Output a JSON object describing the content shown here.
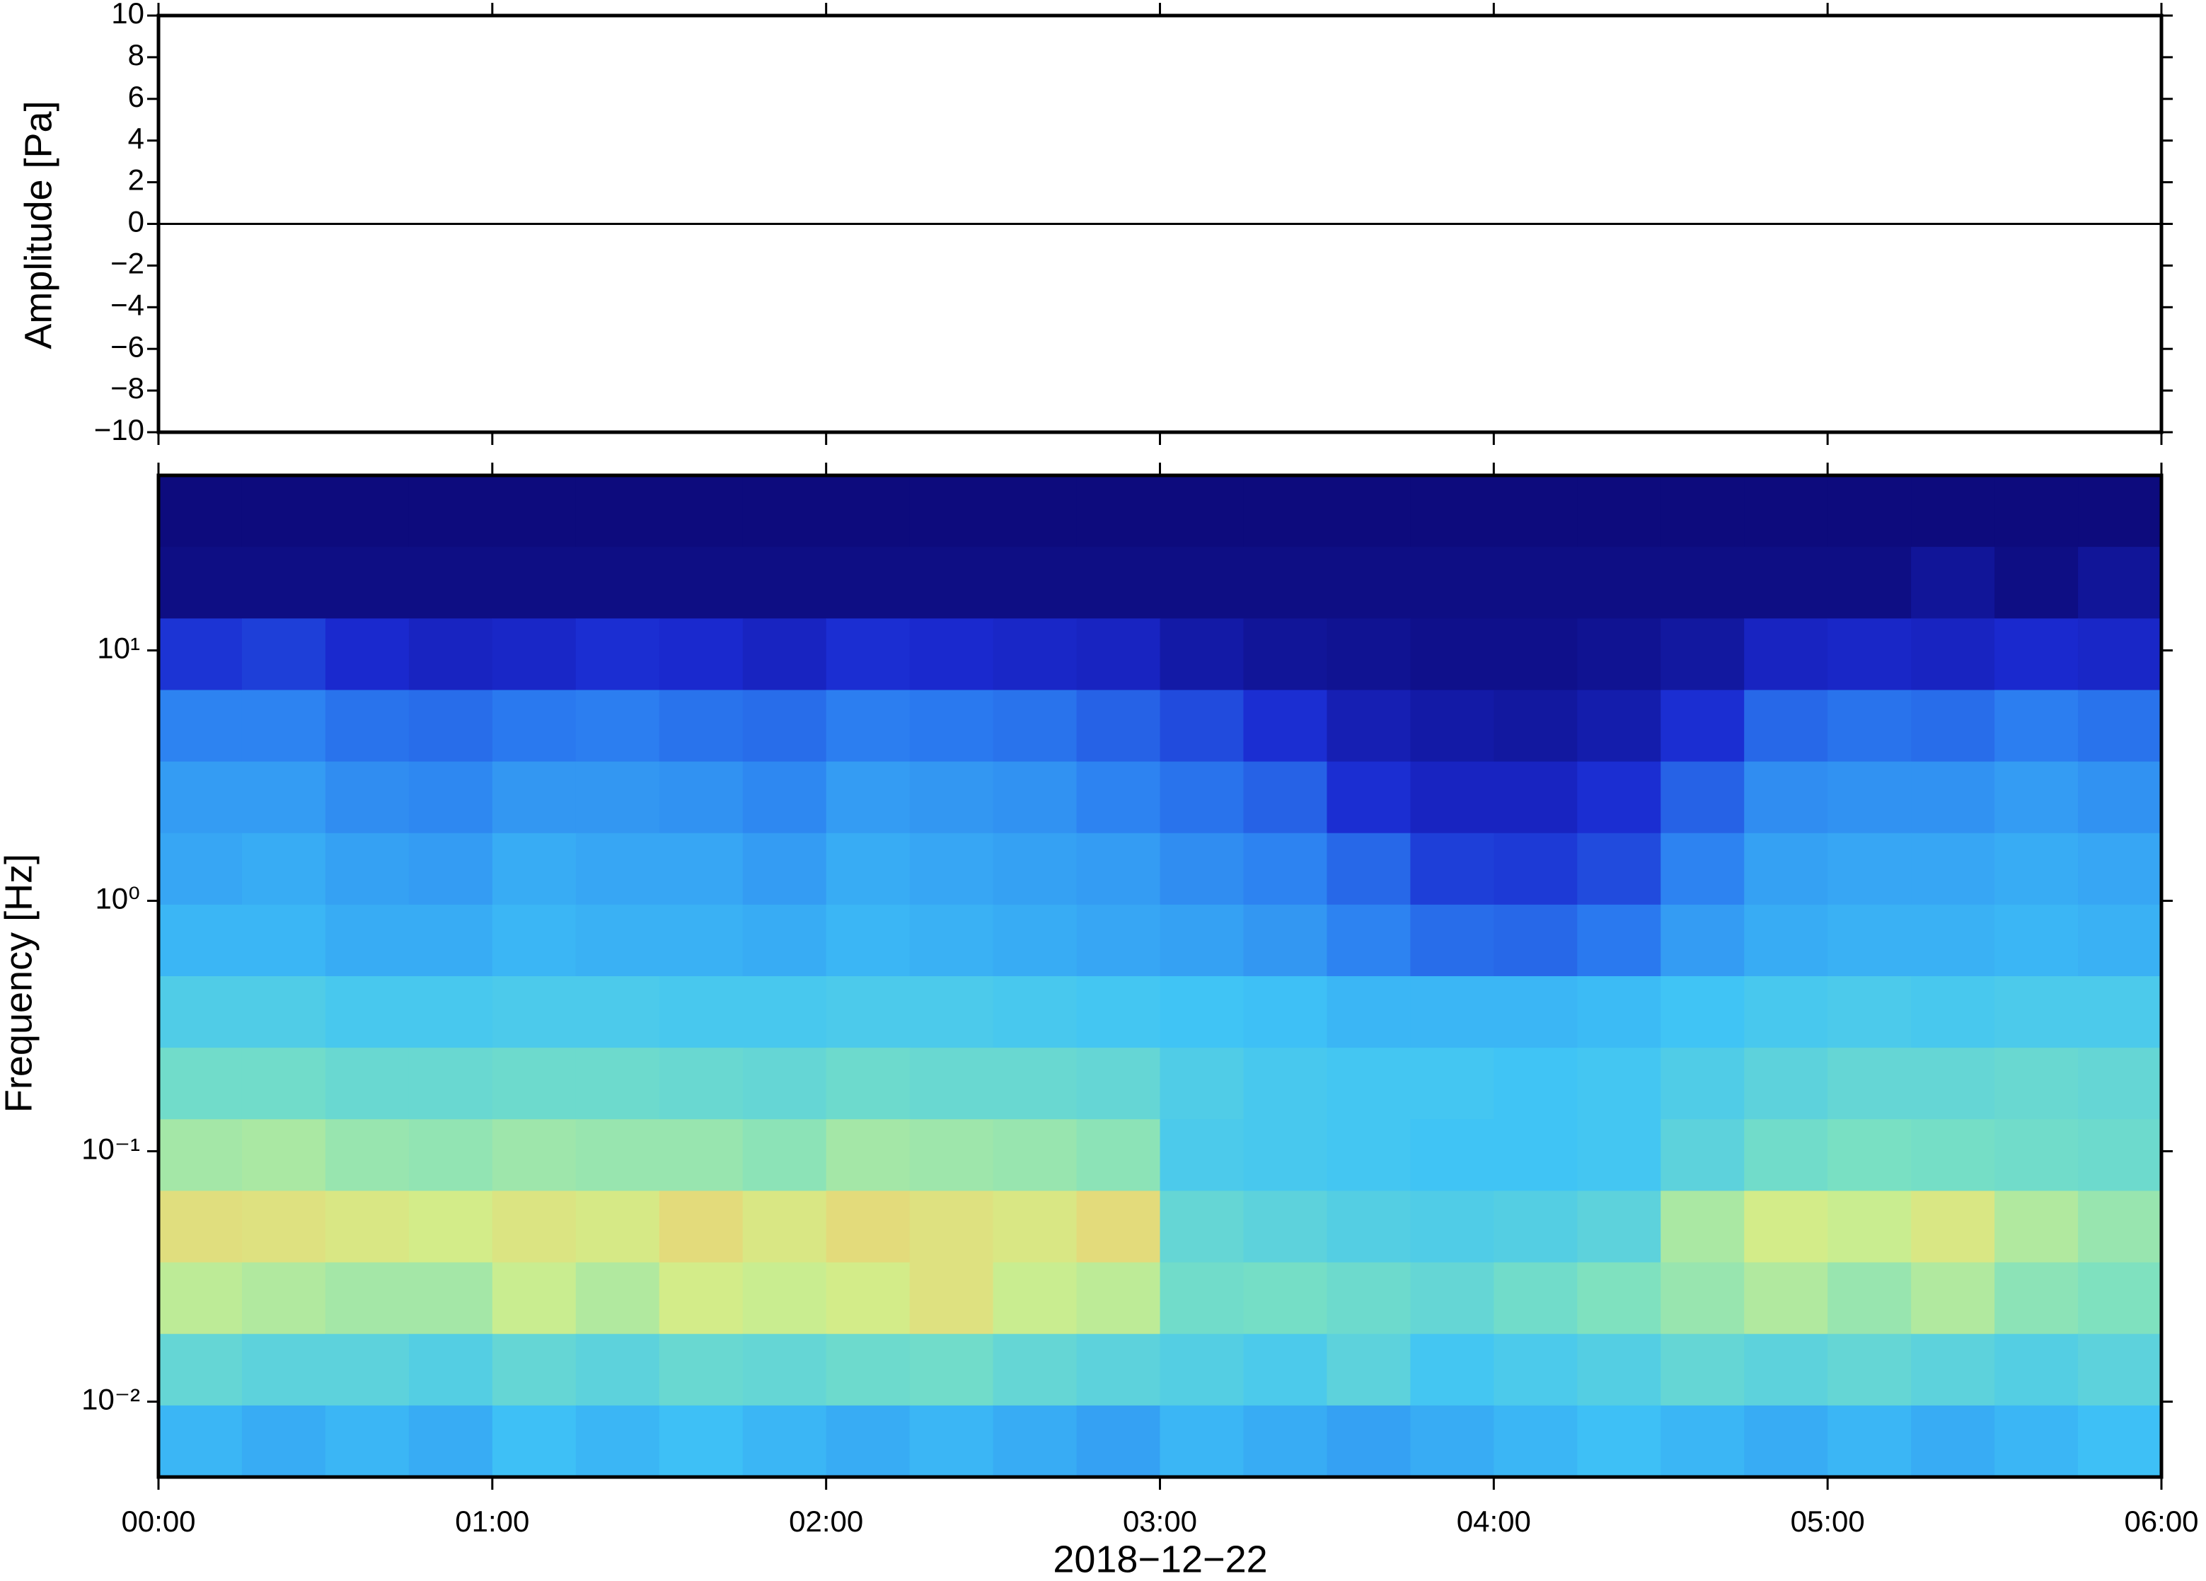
{
  "chart_data": [
    {
      "type": "line",
      "ylabel": "Amplitude [Pa]",
      "x": [
        0,
        6
      ],
      "values": [
        0,
        0
      ],
      "color": "#000000",
      "ylim": [
        -10,
        10
      ],
      "yticks": [
        {
          "value": -10,
          "label": "−10"
        },
        {
          "value": -8,
          "label": "−8"
        },
        {
          "value": -6,
          "label": "−6"
        },
        {
          "value": -4,
          "label": "−4"
        },
        {
          "value": -2,
          "label": "−2"
        },
        0,
        2,
        4,
        6,
        8,
        10
      ]
    },
    {
      "type": "heatmap",
      "ylabel": "Frequency [Hz]",
      "xlabel": "2018−12−22",
      "xlim": [
        0,
        6
      ],
      "xticks": [
        {
          "value": 0,
          "label": "00:00"
        },
        {
          "value": 1,
          "label": "01:00"
        },
        {
          "value": 2,
          "label": "02:00"
        },
        {
          "value": 3,
          "label": "03:00"
        },
        {
          "value": 4,
          "label": "04:00"
        },
        {
          "value": 5,
          "label": "05:00"
        },
        {
          "value": 6,
          "label": "06:00"
        }
      ],
      "ylim": [
        0.005,
        50
      ],
      "log_y": true,
      "yticks": [
        {
          "value": 0.01,
          "label": "10⁻²"
        },
        {
          "value": 0.1,
          "label": "10⁻¹"
        },
        {
          "value": 1,
          "label": "10⁰"
        },
        {
          "value": 10,
          "label": "10¹"
        }
      ],
      "colormap": [
        "#0b0670",
        "#1a2ad0",
        "#2b7cf0",
        "#3fc4f6",
        "#7ae0c2",
        "#d2ee8a",
        "#f7c56a",
        "#f5894a"
      ],
      "values": [
        [
          0.02,
          0.02,
          0.02,
          0.02,
          0.02,
          0.02,
          0.02,
          0.02,
          0.02,
          0.02,
          0.02,
          0.02,
          0.02,
          0.02,
          0.02,
          0.02,
          0.02,
          0.02,
          0.02,
          0.02,
          0.02,
          0.02,
          0.02,
          0.02
        ],
        [
          0.03,
          0.03,
          0.03,
          0.03,
          0.03,
          0.03,
          0.03,
          0.03,
          0.03,
          0.03,
          0.03,
          0.03,
          0.03,
          0.03,
          0.03,
          0.03,
          0.03,
          0.03,
          0.03,
          0.03,
          0.03,
          0.06,
          0.03,
          0.06
        ],
        [
          0.16,
          0.18,
          0.14,
          0.12,
          0.13,
          0.15,
          0.14,
          0.12,
          0.15,
          0.14,
          0.13,
          0.12,
          0.08,
          0.06,
          0.05,
          0.04,
          0.04,
          0.05,
          0.07,
          0.12,
          0.13,
          0.12,
          0.14,
          0.13
        ],
        [
          0.3,
          0.3,
          0.27,
          0.26,
          0.28,
          0.29,
          0.27,
          0.26,
          0.29,
          0.28,
          0.27,
          0.24,
          0.2,
          0.15,
          0.1,
          0.08,
          0.07,
          0.09,
          0.15,
          0.25,
          0.27,
          0.26,
          0.29,
          0.27
        ],
        [
          0.35,
          0.35,
          0.32,
          0.31,
          0.34,
          0.34,
          0.33,
          0.31,
          0.35,
          0.34,
          0.33,
          0.3,
          0.27,
          0.24,
          0.15,
          0.12,
          0.12,
          0.15,
          0.24,
          0.32,
          0.33,
          0.33,
          0.35,
          0.33
        ],
        [
          0.37,
          0.38,
          0.36,
          0.35,
          0.38,
          0.37,
          0.37,
          0.35,
          0.38,
          0.37,
          0.36,
          0.35,
          0.32,
          0.3,
          0.25,
          0.18,
          0.17,
          0.2,
          0.3,
          0.36,
          0.37,
          0.37,
          0.38,
          0.37
        ],
        [
          0.4,
          0.4,
          0.38,
          0.38,
          0.4,
          0.39,
          0.39,
          0.38,
          0.4,
          0.39,
          0.38,
          0.37,
          0.36,
          0.34,
          0.3,
          0.26,
          0.25,
          0.28,
          0.35,
          0.38,
          0.39,
          0.39,
          0.4,
          0.39
        ],
        [
          0.47,
          0.47,
          0.45,
          0.45,
          0.46,
          0.46,
          0.45,
          0.45,
          0.46,
          0.46,
          0.45,
          0.44,
          0.43,
          0.42,
          0.4,
          0.4,
          0.4,
          0.41,
          0.43,
          0.45,
          0.46,
          0.45,
          0.46,
          0.46
        ],
        [
          0.55,
          0.55,
          0.53,
          0.53,
          0.54,
          0.54,
          0.53,
          0.52,
          0.54,
          0.53,
          0.53,
          0.52,
          0.47,
          0.45,
          0.44,
          0.44,
          0.43,
          0.44,
          0.47,
          0.5,
          0.52,
          0.52,
          0.53,
          0.52
        ],
        [
          0.64,
          0.65,
          0.62,
          0.61,
          0.63,
          0.62,
          0.62,
          0.6,
          0.64,
          0.63,
          0.62,
          0.6,
          0.46,
          0.45,
          0.44,
          0.43,
          0.43,
          0.44,
          0.5,
          0.55,
          0.57,
          0.56,
          0.55,
          0.54
        ],
        [
          0.77,
          0.76,
          0.74,
          0.72,
          0.75,
          0.73,
          0.78,
          0.74,
          0.78,
          0.76,
          0.74,
          0.78,
          0.52,
          0.5,
          0.48,
          0.47,
          0.48,
          0.5,
          0.65,
          0.72,
          0.7,
          0.74,
          0.66,
          0.62
        ],
        [
          0.68,
          0.66,
          0.64,
          0.64,
          0.7,
          0.66,
          0.72,
          0.7,
          0.72,
          0.76,
          0.7,
          0.68,
          0.55,
          0.56,
          0.54,
          0.52,
          0.55,
          0.58,
          0.62,
          0.66,
          0.62,
          0.66,
          0.6,
          0.58
        ],
        [
          0.52,
          0.5,
          0.5,
          0.48,
          0.52,
          0.5,
          0.53,
          0.52,
          0.54,
          0.55,
          0.52,
          0.5,
          0.48,
          0.46,
          0.5,
          0.44,
          0.46,
          0.48,
          0.52,
          0.5,
          0.52,
          0.5,
          0.48,
          0.5
        ],
        [
          0.4,
          0.38,
          0.4,
          0.38,
          0.42,
          0.4,
          0.42,
          0.4,
          0.38,
          0.4,
          0.38,
          0.36,
          0.4,
          0.38,
          0.36,
          0.38,
          0.4,
          0.42,
          0.4,
          0.38,
          0.4,
          0.38,
          0.4,
          0.42
        ]
      ]
    }
  ]
}
